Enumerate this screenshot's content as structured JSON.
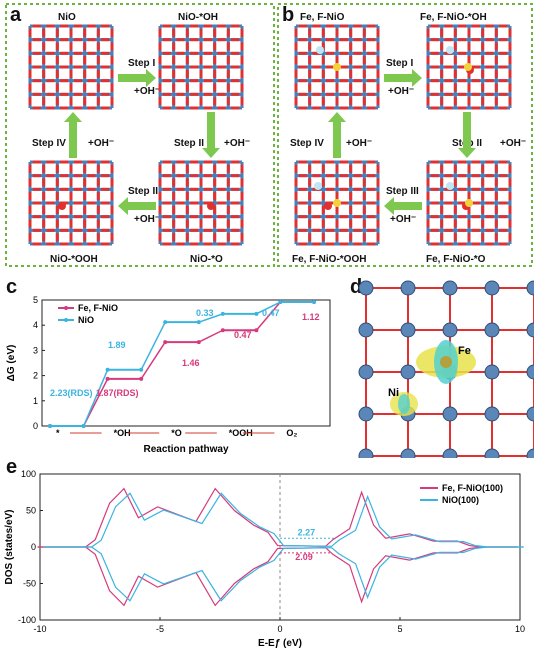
{
  "panel_labels": {
    "a": "a",
    "b": "b",
    "c": "c",
    "d": "d",
    "e": "e"
  },
  "panel_a": {
    "states": [
      "NiO",
      "NiO-*OH",
      "NiO-*O",
      "NiO-*OOH"
    ],
    "steps": [
      "Step I",
      "Step II",
      "Step III",
      "Step IV"
    ],
    "reagent": "+OH⁻"
  },
  "panel_b": {
    "states": [
      "Fe, F-NiO",
      "Fe, F-NiO-*OH",
      "Fe, F-NiO-*O",
      "Fe, F-NiO-*OOH"
    ],
    "steps": [
      "Step I",
      "Step II",
      "Step III",
      "Step IV"
    ],
    "reagent": "+OH⁻"
  },
  "panel_d": {
    "labels": [
      "Fe",
      "Ni"
    ]
  },
  "colors": {
    "fe_series": "#d63a7c",
    "nio_series": "#3cb4e0",
    "arrow_green": "#7ec850",
    "frame_green": "#6cb33f",
    "oxygen": "#e03030",
    "nickel": "#4a7fb8"
  },
  "chart_data": [
    {
      "type": "line",
      "ylabel": "ΔG (eV)",
      "xlabel": "Reaction pathway",
      "categories": [
        "*",
        "*OH",
        "*O",
        "*OOH",
        "O₂"
      ],
      "ylim": [
        0,
        5
      ],
      "yticks": [
        "0",
        "1",
        "2",
        "3",
        "4",
        "5"
      ],
      "series": [
        {
          "name": "Fe, F-NiO",
          "values": [
            0,
            1.87,
            3.33,
            3.8,
            4.92
          ]
        },
        {
          "name": "NiO",
          "values": [
            0,
            2.23,
            4.12,
            4.45,
            4.92
          ]
        }
      ],
      "annotations": [
        "0.33",
        "0.47",
        "1.89",
        "0.47",
        "1.46",
        "1.12",
        "2.23(RDS)",
        "1.87(RDS)"
      ]
    },
    {
      "type": "line",
      "ylabel": "DOS (states/eV)",
      "xlabel": "E-Eƒ (eV)",
      "xlim": [
        -10,
        10
      ],
      "ylim": [
        -100,
        100
      ],
      "xticks": [
        "-10",
        "-5",
        "0",
        "5",
        "10"
      ],
      "yticks": [
        "100",
        "50",
        "0",
        "-50",
        "-100"
      ],
      "series": [
        {
          "name": "Fe, F-NiO(100)"
        },
        {
          "name": "NiO(100)"
        }
      ],
      "annotations": [
        "2.27",
        "2.09"
      ]
    }
  ]
}
